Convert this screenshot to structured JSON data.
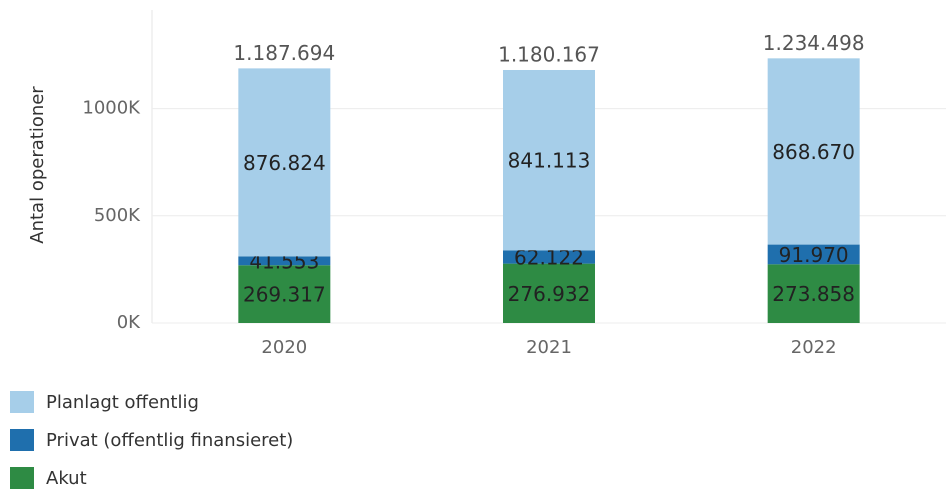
{
  "chart_data": {
    "type": "stacked-bar",
    "y_axis_label": "Antal operationer",
    "categories": [
      "2020",
      "2021",
      "2022"
    ],
    "series": [
      {
        "name": "Akut",
        "color": "#2e8b44",
        "values": [
          269317,
          276932,
          273858
        ],
        "value_labels": [
          "269.317",
          "276.932",
          "273.858"
        ]
      },
      {
        "name": "Privat (offentlig finansieret)",
        "color": "#1f6fad",
        "values": [
          41553,
          62122,
          91970
        ],
        "value_labels": [
          "41.553",
          "62.122",
          "91.970"
        ]
      },
      {
        "name": "Planlagt offentlig",
        "color": "#a6cee9",
        "values": [
          876824,
          841113,
          868670
        ],
        "value_labels": [
          "876.824",
          "841.113",
          "868.670"
        ]
      }
    ],
    "total_labels": [
      "1.187.694",
      "1.180.167",
      "1.234.498"
    ],
    "ylim": [
      0,
      1460000
    ],
    "yticks": [
      {
        "value": 0,
        "label": "0K"
      },
      {
        "value": 500000,
        "label": "500K"
      },
      {
        "value": 1000000,
        "label": "1000K"
      }
    ],
    "grid": true
  }
}
